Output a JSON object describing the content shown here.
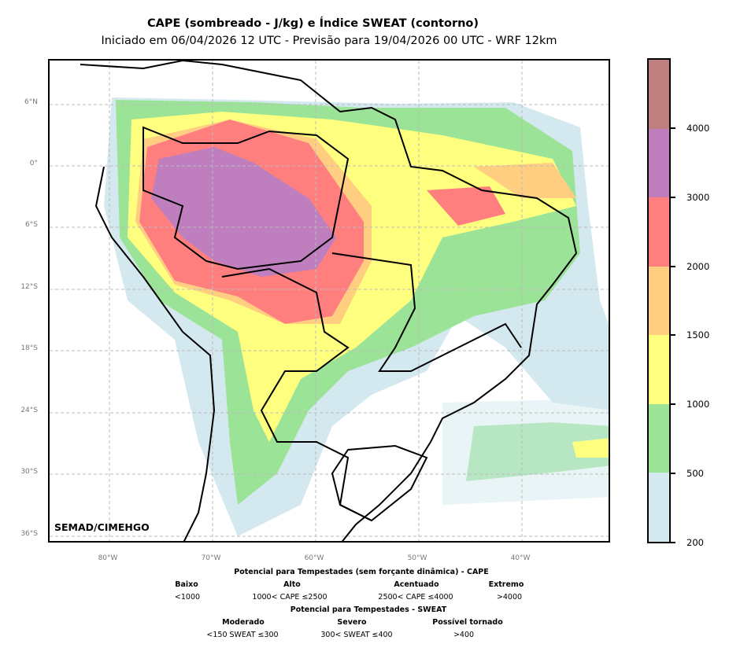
{
  "title": "CAPE (sombreado - J/kg) e Índice SWEAT (contorno)",
  "subtitle": "Iniciado em 06/04/2026 12 UTC - Previsão para 19/04/2026 00 UTC - WRF 12km",
  "credit": "SEMAD/CIMEHGO",
  "lat_labels": [
    "6°N",
    "0°",
    "6°S",
    "12°S",
    "18°S",
    "24°S",
    "30°S",
    "36°S"
  ],
  "lon_labels": [
    "80°W",
    "70°W",
    "60°W",
    "50°W",
    "40°W"
  ],
  "colorbar": {
    "ticks": [
      "200",
      "500",
      "1000",
      "1500",
      "2000",
      "3000",
      "4000"
    ],
    "colors": [
      "#d4e9ef",
      "#9be396",
      "#ffff7f",
      "#ffce80",
      "#ff7f7f",
      "#bf7fbf",
      "#bf7f7f"
    ]
  },
  "legend": {
    "cape_title": "Potencial para Tempestades (sem forçante dinâmica) - CAPE",
    "cape_classes": [
      {
        "name": "Baixo",
        "range": "<1000"
      },
      {
        "name": "Alto",
        "range": "1000< CAPE ≤2500"
      },
      {
        "name": "Acentuado",
        "range": "2500< CAPE ≤4000"
      },
      {
        "name": "Extremo",
        "range": ">4000"
      }
    ],
    "sweat_title": "Potencial para Tempestades - SWEAT",
    "sweat_classes": [
      {
        "name": "Moderado",
        "range": "<150 SWEAT ≤300"
      },
      {
        "name": "Severo",
        "range": "300< SWEAT ≤400"
      },
      {
        "name": "Possível tornado",
        "range": ">400"
      }
    ]
  }
}
